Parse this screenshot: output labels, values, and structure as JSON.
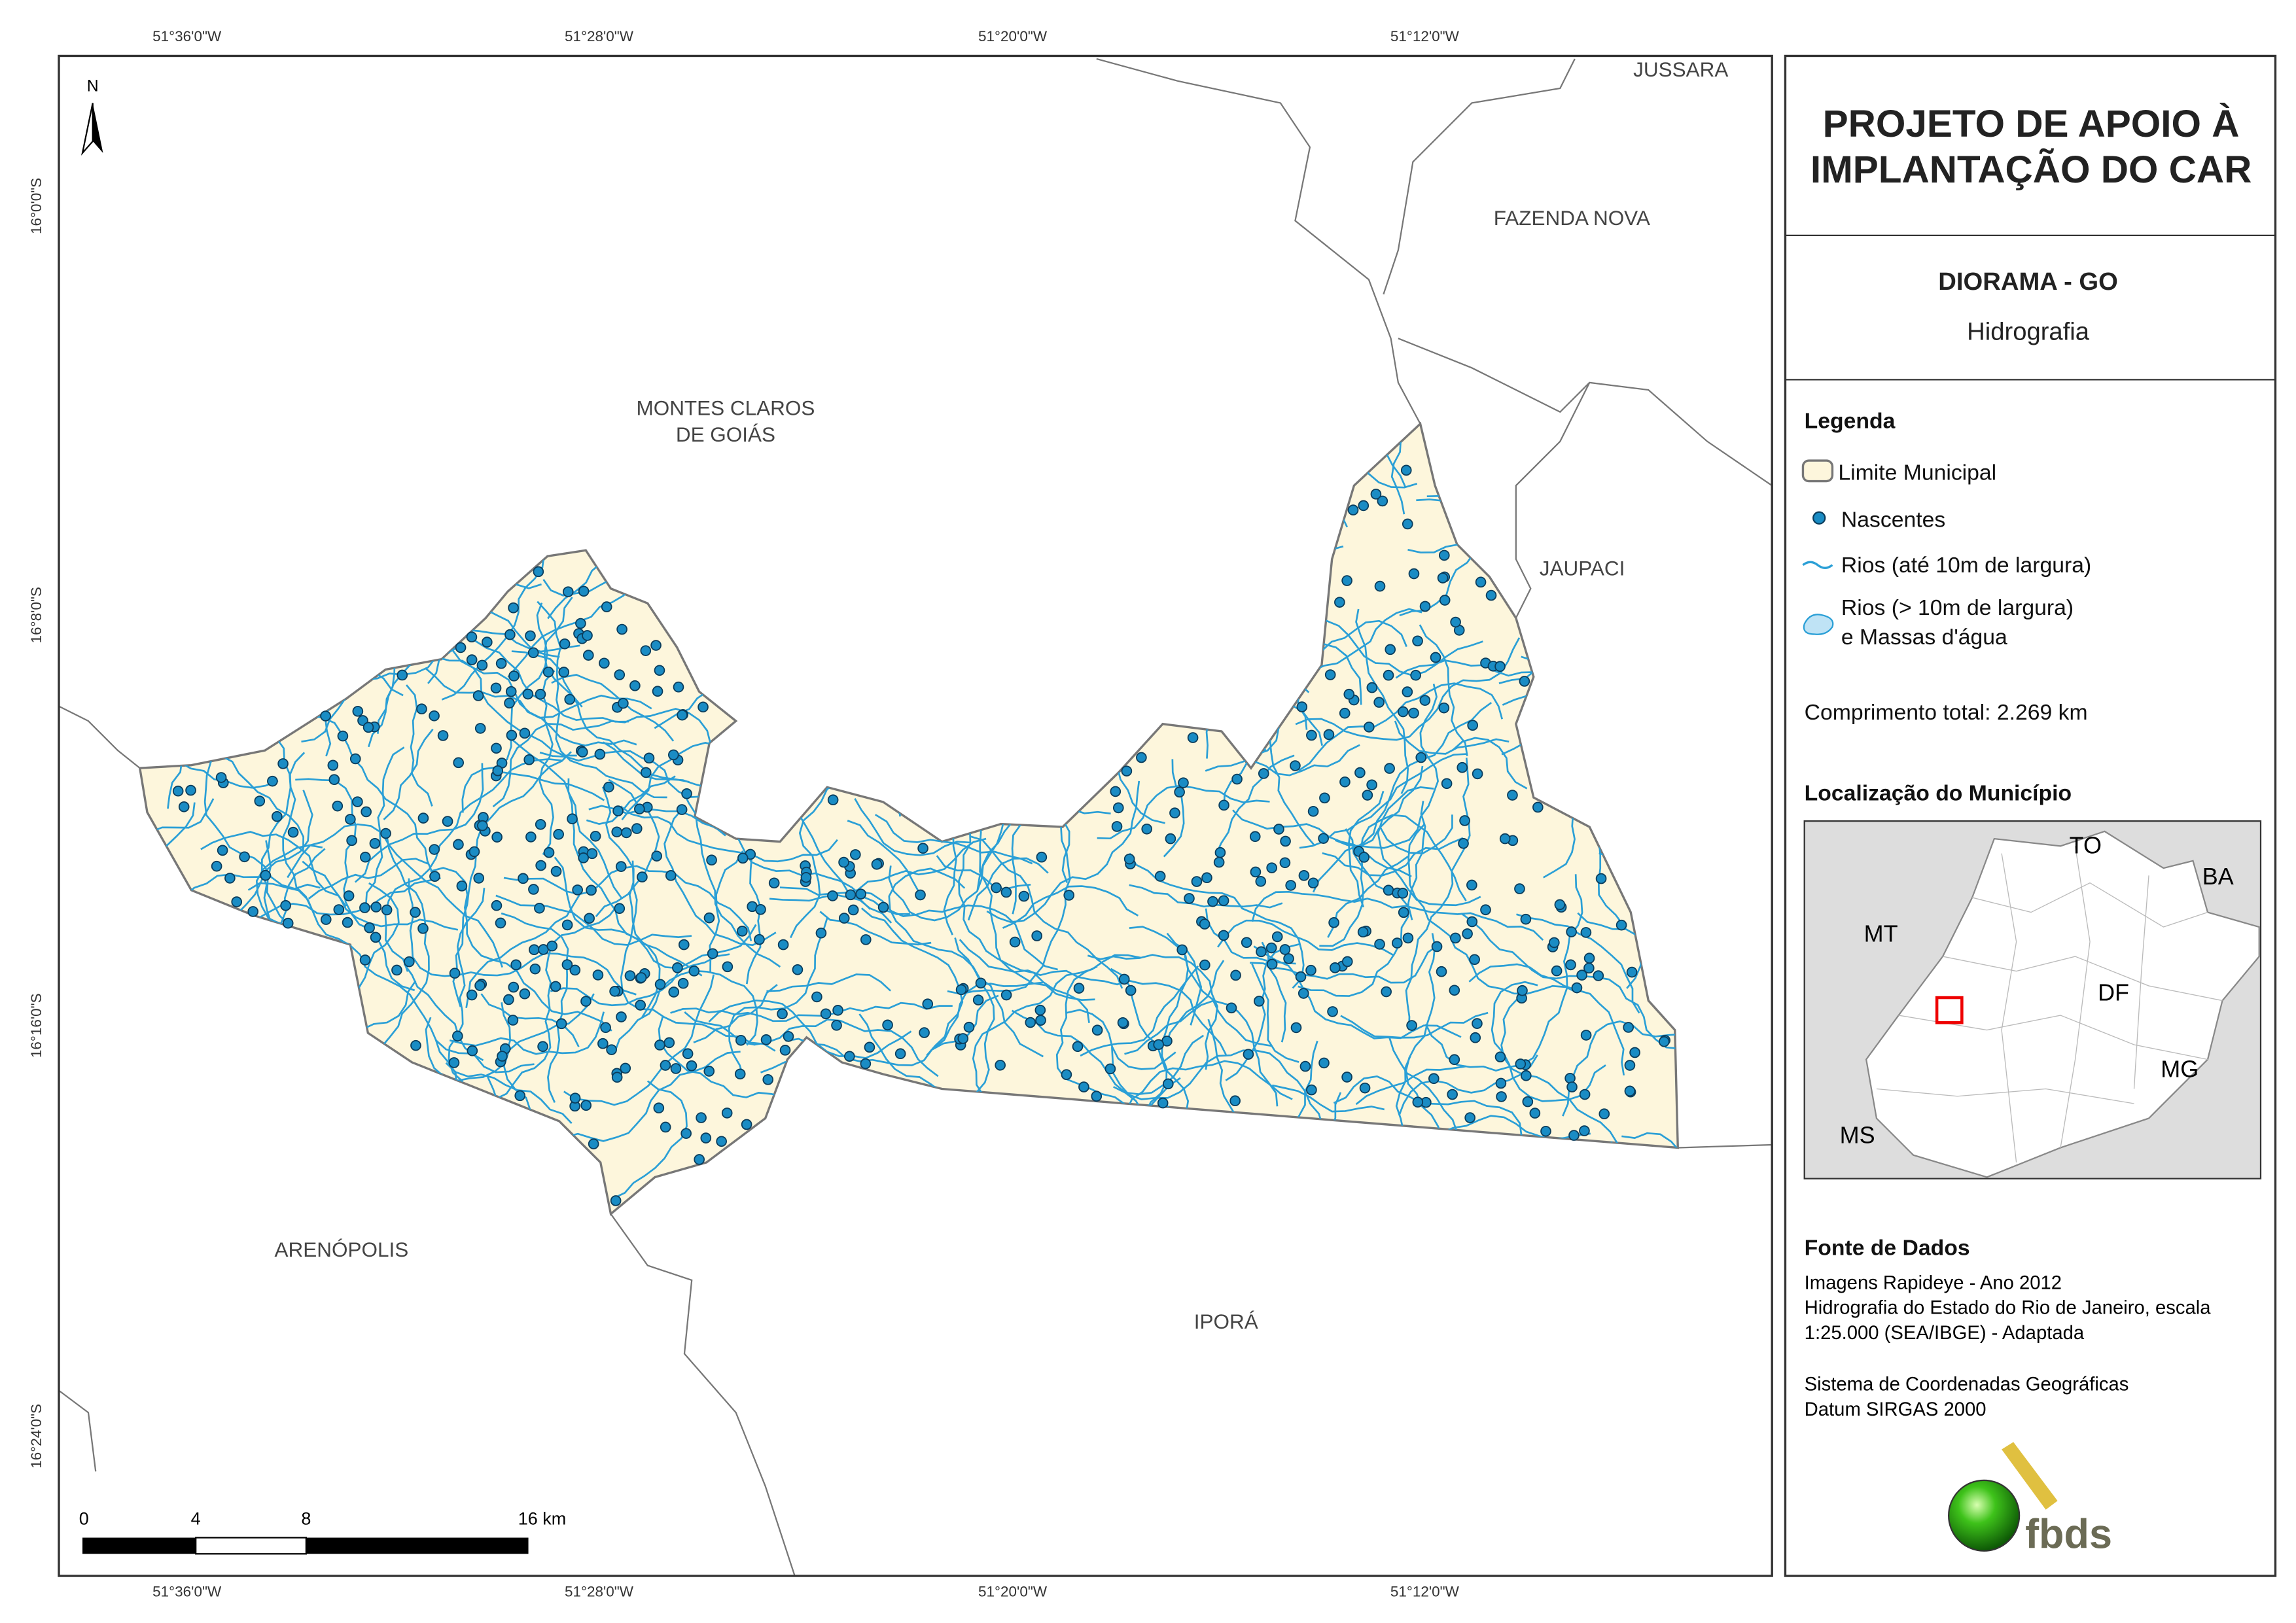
{
  "map": {
    "coordinates_top": [
      "51°36'0\"W",
      "51°28'0\"W",
      "51°20'0\"W",
      "51°12'0\"W"
    ],
    "coordinates_bottom": [
      "51°36'0\"W",
      "51°28'0\"W",
      "51°20'0\"W",
      "51°12'0\"W"
    ],
    "coordinates_left": [
      "16°0'0\"S",
      "16°8'0\"S",
      "16°16'0\"S",
      "16°24'0\"S"
    ],
    "places": [
      "JUSSARA",
      "FAZENDA NOVA",
      "MONTES CLAROS",
      "DE GOIÁS",
      "JAUPACI",
      "ARENÓPOLIS",
      "IPORÁ"
    ],
    "north": "N",
    "scale": [
      "0",
      "4",
      "8",
      "16 km"
    ]
  },
  "panel": {
    "title": [
      "PROJETO DE APOIO À",
      "IMPLANTAÇÃO DO CAR"
    ],
    "municipality": "DIORAMA - GO",
    "theme": "Hidrografia",
    "legend": {
      "title": "Legenda",
      "items": [
        "Limite Municipal",
        "Nascentes",
        "Rios (até 10m de largura)",
        "Rios (> 10m de largura)",
        "e Massas d'água"
      ]
    },
    "total_length": "Comprimento total:  2.269 km",
    "location": {
      "title": "Localização do Município",
      "labels": [
        "TO",
        "BA",
        "MT",
        "DF",
        "MG",
        "MS"
      ]
    },
    "sources": {
      "title": "Fonte de Dados",
      "lines": [
        "Imagens Rapideye - Ano 2012",
        "Hidrografia do Estado do Rio de Janeiro, escala",
        "1:25.000 (SEA/IBGE) - Adaptada",
        "Sistema de Coordenadas Geográficas",
        "Datum SIRGAS 2000"
      ]
    },
    "logo": "fbds"
  }
}
